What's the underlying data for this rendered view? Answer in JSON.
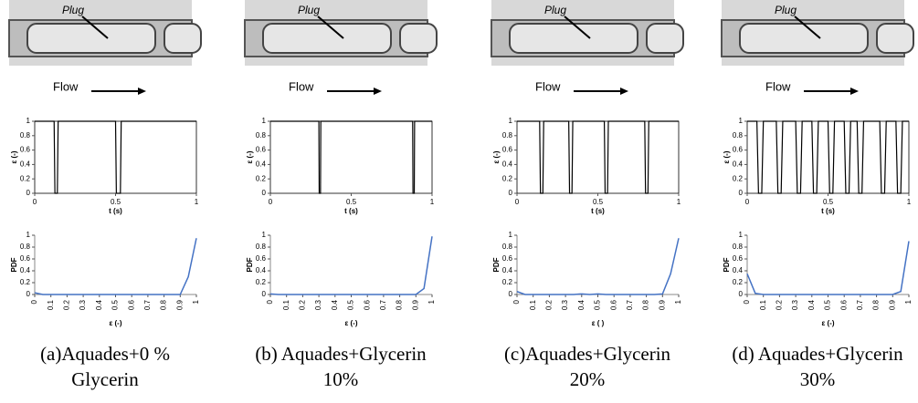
{
  "panels": [
    {
      "photo_label": "Plug",
      "flow_label": "Flow",
      "caption": [
        "(a)Aquades+0 %",
        "Glycerin"
      ]
    },
    {
      "photo_label": "Plug",
      "flow_label": "Flow",
      "caption": [
        "(b) Aquades+Glycerin",
        "10%"
      ]
    },
    {
      "photo_label": "Plug",
      "flow_label": "Flow",
      "caption": [
        "(c)Aquades+Glycerin",
        "20%"
      ]
    },
    {
      "photo_label": "Plug",
      "flow_label": "Flow",
      "caption": [
        "(d) Aquades+Glycerin",
        "30%"
      ]
    }
  ],
  "chart_data": [
    {
      "type": "line",
      "xlabel": "t (s)",
      "ylabel": "ε (-)",
      "color": "#000000",
      "xlim": [
        0,
        1
      ],
      "ylim": [
        0,
        1
      ],
      "xticks": [
        0,
        0.5,
        1
      ],
      "yticks": [
        0,
        0.2,
        0.4,
        0.6,
        0.8,
        1
      ],
      "series": [
        {
          "x": [
            0,
            0.12,
            0.125,
            0.14,
            0.145,
            0.5,
            0.505,
            0.53,
            0.535,
            1
          ],
          "values": [
            1,
            1,
            0,
            0,
            1,
            1,
            0,
            0,
            1,
            1
          ]
        }
      ]
    },
    {
      "type": "line",
      "xlabel": "ε (-)",
      "ylabel": "PDF",
      "color": "#4472c4",
      "xlim": [
        0,
        1
      ],
      "ylim": [
        0,
        1
      ],
      "xticks": [
        0,
        0.1,
        0.2,
        0.3,
        0.4,
        0.5,
        0.6,
        0.7,
        0.8,
        0.9,
        1
      ],
      "yticks": [
        0,
        0.2,
        0.4,
        0.6,
        0.8,
        1
      ],
      "series": [
        {
          "x": [
            0,
            0.05,
            0.1,
            0.15,
            0.2,
            0.25,
            0.3,
            0.35,
            0.4,
            0.45,
            0.5,
            0.55,
            0.6,
            0.65,
            0.7,
            0.75,
            0.8,
            0.85,
            0.9,
            0.95,
            1
          ],
          "values": [
            0.03,
            0,
            0,
            0,
            0,
            0,
            0,
            0,
            0,
            0,
            0,
            0,
            0,
            0,
            0,
            0,
            0,
            0,
            0,
            0.3,
            0.95
          ]
        }
      ]
    },
    {
      "type": "line",
      "xlabel": "t (s)",
      "ylabel": "ε (-)",
      "color": "#000000",
      "xlim": [
        0,
        1
      ],
      "ylim": [
        0,
        1
      ],
      "xticks": [
        0,
        0.5,
        1
      ],
      "yticks": [
        0,
        0.2,
        0.4,
        0.6,
        0.8,
        1
      ],
      "series": [
        {
          "x": [
            0,
            0.3,
            0.302,
            0.31,
            0.312,
            0.88,
            0.882,
            0.89,
            0.892,
            1
          ],
          "values": [
            1,
            1,
            0,
            0,
            1,
            1,
            0,
            0,
            1,
            1
          ]
        }
      ]
    },
    {
      "type": "line",
      "xlabel": "ε (-)",
      "ylabel": "PDF",
      "color": "#4472c4",
      "xlim": [
        0,
        1
      ],
      "ylim": [
        0,
        1
      ],
      "xticks": [
        0,
        0.1,
        0.2,
        0.3,
        0.4,
        0.5,
        0.6,
        0.7,
        0.8,
        0.9,
        1
      ],
      "yticks": [
        0,
        0.2,
        0.4,
        0.6,
        0.8,
        1
      ],
      "series": [
        {
          "x": [
            0,
            0.05,
            0.1,
            0.15,
            0.2,
            0.25,
            0.3,
            0.35,
            0.4,
            0.45,
            0.5,
            0.55,
            0.6,
            0.65,
            0.7,
            0.75,
            0.8,
            0.85,
            0.9,
            0.95,
            1
          ],
          "values": [
            0.01,
            0,
            0,
            0,
            0,
            0,
            0,
            0,
            0,
            0,
            0,
            0,
            0,
            0,
            0,
            0,
            0,
            0,
            0,
            0.1,
            0.98
          ]
        }
      ]
    },
    {
      "type": "line",
      "xlabel": "t (s)",
      "ylabel": "ε (-)",
      "color": "#000000",
      "xlim": [
        0,
        1
      ],
      "ylim": [
        0,
        1
      ],
      "xticks": [
        0,
        0.5,
        1
      ],
      "yticks": [
        0,
        0.2,
        0.4,
        0.6,
        0.8,
        1
      ],
      "series": [
        {
          "x": [
            0,
            0.14,
            0.145,
            0.16,
            0.165,
            0.32,
            0.325,
            0.34,
            0.345,
            0.54,
            0.545,
            0.56,
            0.565,
            0.79,
            0.795,
            0.81,
            0.815,
            1
          ],
          "values": [
            1,
            1,
            0,
            0,
            1,
            1,
            0,
            0,
            1,
            1,
            0,
            0,
            1,
            1,
            0,
            0,
            1,
            1
          ]
        }
      ]
    },
    {
      "type": "line",
      "xlabel": "ε ( )",
      "ylabel": "PDF",
      "color": "#4472c4",
      "xlim": [
        0,
        1
      ],
      "ylim": [
        0,
        1
      ],
      "xticks": [
        0,
        0.1,
        0.2,
        0.3,
        0.4,
        0.5,
        0.6,
        0.7,
        0.8,
        0.9,
        1
      ],
      "yticks": [
        0,
        0.2,
        0.4,
        0.6,
        0.8,
        1
      ],
      "series": [
        {
          "x": [
            0,
            0.05,
            0.1,
            0.15,
            0.2,
            0.25,
            0.3,
            0.35,
            0.4,
            0.45,
            0.5,
            0.55,
            0.6,
            0.65,
            0.7,
            0.75,
            0.8,
            0.85,
            0.9,
            0.95,
            1
          ],
          "values": [
            0.05,
            0,
            0,
            0,
            0,
            0,
            0,
            0,
            0.01,
            0,
            0.01,
            0,
            0,
            0,
            0,
            0,
            0,
            0,
            0.01,
            0.35,
            0.95
          ]
        }
      ]
    },
    {
      "type": "line",
      "xlabel": "t (s)",
      "ylabel": "ε (-)",
      "color": "#000000",
      "xlim": [
        0,
        1
      ],
      "ylim": [
        0,
        1
      ],
      "xticks": [
        0,
        0.5,
        1
      ],
      "yticks": [
        0,
        0.2,
        0.4,
        0.6,
        0.8,
        1
      ],
      "series": [
        {
          "x": [
            0,
            0.06,
            0.07,
            0.09,
            0.1,
            0.18,
            0.19,
            0.21,
            0.22,
            0.3,
            0.31,
            0.33,
            0.34,
            0.4,
            0.41,
            0.43,
            0.44,
            0.5,
            0.51,
            0.53,
            0.54,
            0.6,
            0.61,
            0.63,
            0.64,
            0.68,
            0.69,
            0.71,
            0.72,
            0.82,
            0.83,
            0.85,
            0.86,
            0.92,
            0.93,
            0.95,
            0.96,
            1
          ],
          "values": [
            1,
            1,
            0,
            0,
            1,
            1,
            0,
            0,
            1,
            1,
            0,
            0,
            1,
            1,
            0,
            0,
            1,
            1,
            0,
            0,
            1,
            1,
            0,
            0,
            1,
            1,
            0,
            0,
            1,
            1,
            0,
            0,
            1,
            1,
            0,
            0,
            1,
            1
          ]
        }
      ]
    },
    {
      "type": "line",
      "xlabel": "ε (-)",
      "ylabel": "PDF",
      "color": "#4472c4",
      "xlim": [
        0,
        1
      ],
      "ylim": [
        0,
        1
      ],
      "xticks": [
        0,
        0.1,
        0.2,
        0.3,
        0.4,
        0.5,
        0.6,
        0.7,
        0.8,
        0.9,
        1
      ],
      "yticks": [
        0,
        0.2,
        0.4,
        0.6,
        0.8,
        1
      ],
      "series": [
        {
          "x": [
            0,
            0.05,
            0.1,
            0.15,
            0.2,
            0.25,
            0.3,
            0.35,
            0.4,
            0.45,
            0.5,
            0.55,
            0.6,
            0.65,
            0.7,
            0.75,
            0.8,
            0.85,
            0.9,
            0.95,
            1
          ],
          "values": [
            0.35,
            0.02,
            0,
            0,
            0,
            0,
            0,
            0,
            0,
            0,
            0,
            0,
            0,
            0,
            0,
            0,
            0,
            0,
            0,
            0.05,
            0.9
          ]
        }
      ]
    }
  ]
}
